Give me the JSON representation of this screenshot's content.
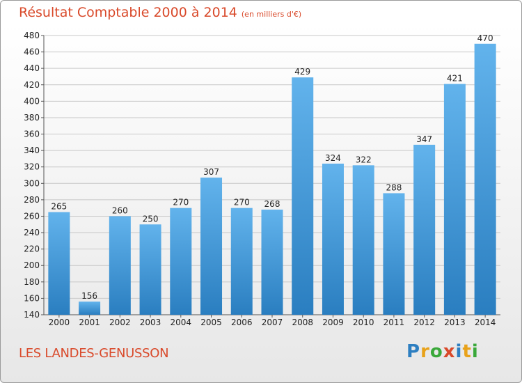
{
  "header": {
    "title": "Résultat Comptable 2000 à 2014",
    "subtitle": "(en milliers d'€)"
  },
  "footer": {
    "commune": "LES LANDES-GENUSSON",
    "logo_letters": [
      {
        "char": "P",
        "color": "#2e7fc1"
      },
      {
        "char": "r",
        "color": "#e8a21a"
      },
      {
        "char": "o",
        "color": "#3aa83a"
      },
      {
        "char": "x",
        "color": "#d9492a"
      },
      {
        "char": "i",
        "color": "#2e7fc1"
      },
      {
        "char": "t",
        "color": "#e8a21a"
      },
      {
        "char": "i",
        "color": "#3aa83a"
      }
    ]
  },
  "chart_data": {
    "type": "bar",
    "title": "Résultat Comptable 2000 à 2014",
    "subtitle": "(en milliers d'€)",
    "categories": [
      "2000",
      "2001",
      "2002",
      "2003",
      "2004",
      "2005",
      "2006",
      "2007",
      "2008",
      "2009",
      "2010",
      "2011",
      "2012",
      "2013",
      "2014"
    ],
    "values": [
      265,
      156,
      260,
      250,
      270,
      307,
      270,
      268,
      429,
      324,
      322,
      288,
      347,
      421,
      470
    ],
    "ylim": [
      140,
      480
    ],
    "yticks": [
      140,
      160,
      180,
      200,
      220,
      240,
      260,
      280,
      300,
      320,
      340,
      360,
      380,
      400,
      420,
      440,
      460,
      480
    ],
    "grid": true,
    "colors": {
      "bar_top": "#62b3ec",
      "bar_bottom": "#2a7ec0",
      "grid": "#c8c8c8",
      "title": "#d9492a"
    }
  }
}
